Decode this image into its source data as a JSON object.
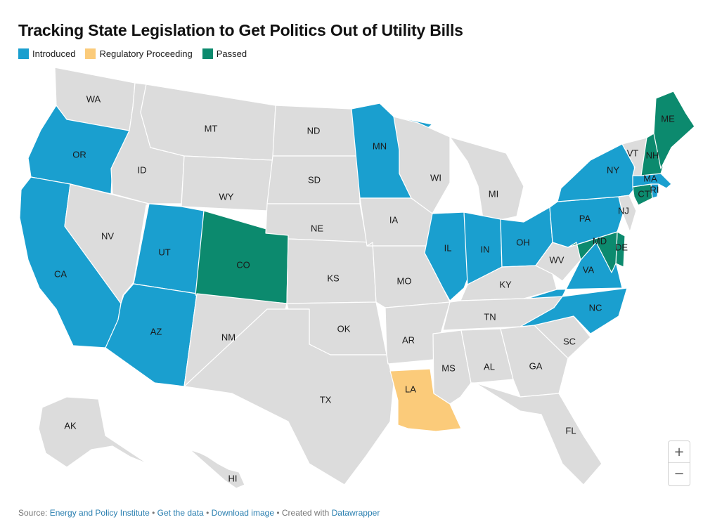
{
  "title": "Tracking State Legislation to Get Politics Out of Utility Bills",
  "legend": [
    {
      "label": "Introduced",
      "color": "#1a9fcf"
    },
    {
      "label": "Regulatory Proceeding",
      "color": "#fbcb7a"
    },
    {
      "label": "Passed",
      "color": "#0c8a6e"
    }
  ],
  "default_color": "#dcdcdc",
  "states": [
    {
      "abbr": "WA",
      "status": ""
    },
    {
      "abbr": "OR",
      "status": "Introduced"
    },
    {
      "abbr": "CA",
      "status": "Introduced"
    },
    {
      "abbr": "NV",
      "status": ""
    },
    {
      "abbr": "ID",
      "status": ""
    },
    {
      "abbr": "MT",
      "status": ""
    },
    {
      "abbr": "WY",
      "status": ""
    },
    {
      "abbr": "UT",
      "status": "Introduced"
    },
    {
      "abbr": "AZ",
      "status": "Introduced"
    },
    {
      "abbr": "CO",
      "status": "Passed"
    },
    {
      "abbr": "NM",
      "status": ""
    },
    {
      "abbr": "ND",
      "status": ""
    },
    {
      "abbr": "SD",
      "status": ""
    },
    {
      "abbr": "NE",
      "status": ""
    },
    {
      "abbr": "KS",
      "status": ""
    },
    {
      "abbr": "OK",
      "status": ""
    },
    {
      "abbr": "TX",
      "status": ""
    },
    {
      "abbr": "MN",
      "status": "Introduced"
    },
    {
      "abbr": "IA",
      "status": ""
    },
    {
      "abbr": "MO",
      "status": ""
    },
    {
      "abbr": "AR",
      "status": ""
    },
    {
      "abbr": "LA",
      "status": "Regulatory Proceeding"
    },
    {
      "abbr": "WI",
      "status": ""
    },
    {
      "abbr": "IL",
      "status": "Introduced"
    },
    {
      "abbr": "MI",
      "status": ""
    },
    {
      "abbr": "IN",
      "status": "Introduced"
    },
    {
      "abbr": "OH",
      "status": "Introduced"
    },
    {
      "abbr": "KY",
      "status": ""
    },
    {
      "abbr": "TN",
      "status": ""
    },
    {
      "abbr": "MS",
      "status": ""
    },
    {
      "abbr": "AL",
      "status": ""
    },
    {
      "abbr": "GA",
      "status": ""
    },
    {
      "abbr": "FL",
      "status": ""
    },
    {
      "abbr": "SC",
      "status": ""
    },
    {
      "abbr": "NC",
      "status": "Introduced"
    },
    {
      "abbr": "VA",
      "status": "Introduced"
    },
    {
      "abbr": "WV",
      "status": ""
    },
    {
      "abbr": "PA",
      "status": "Introduced"
    },
    {
      "abbr": "NY",
      "status": "Introduced"
    },
    {
      "abbr": "NJ",
      "status": ""
    },
    {
      "abbr": "DE",
      "status": "Passed"
    },
    {
      "abbr": "MD",
      "status": "Passed"
    },
    {
      "abbr": "CT",
      "status": "Passed"
    },
    {
      "abbr": "RI",
      "status": "Introduced"
    },
    {
      "abbr": "MA",
      "status": "Introduced"
    },
    {
      "abbr": "VT",
      "status": ""
    },
    {
      "abbr": "NH",
      "status": "Passed"
    },
    {
      "abbr": "ME",
      "status": "Passed"
    },
    {
      "abbr": "AK",
      "status": ""
    },
    {
      "abbr": "HI",
      "status": ""
    }
  ],
  "zoom": {
    "in_label": "+",
    "out_label": "−"
  },
  "footer": {
    "source_prefix": "Source:",
    "source_link": "Energy and Policy Institute",
    "sep1": "•",
    "get_data": "Get the data",
    "sep2": "•",
    "download": "Download image",
    "sep3": "•",
    "created_with": "Created with",
    "tool": "Datawrapper"
  }
}
